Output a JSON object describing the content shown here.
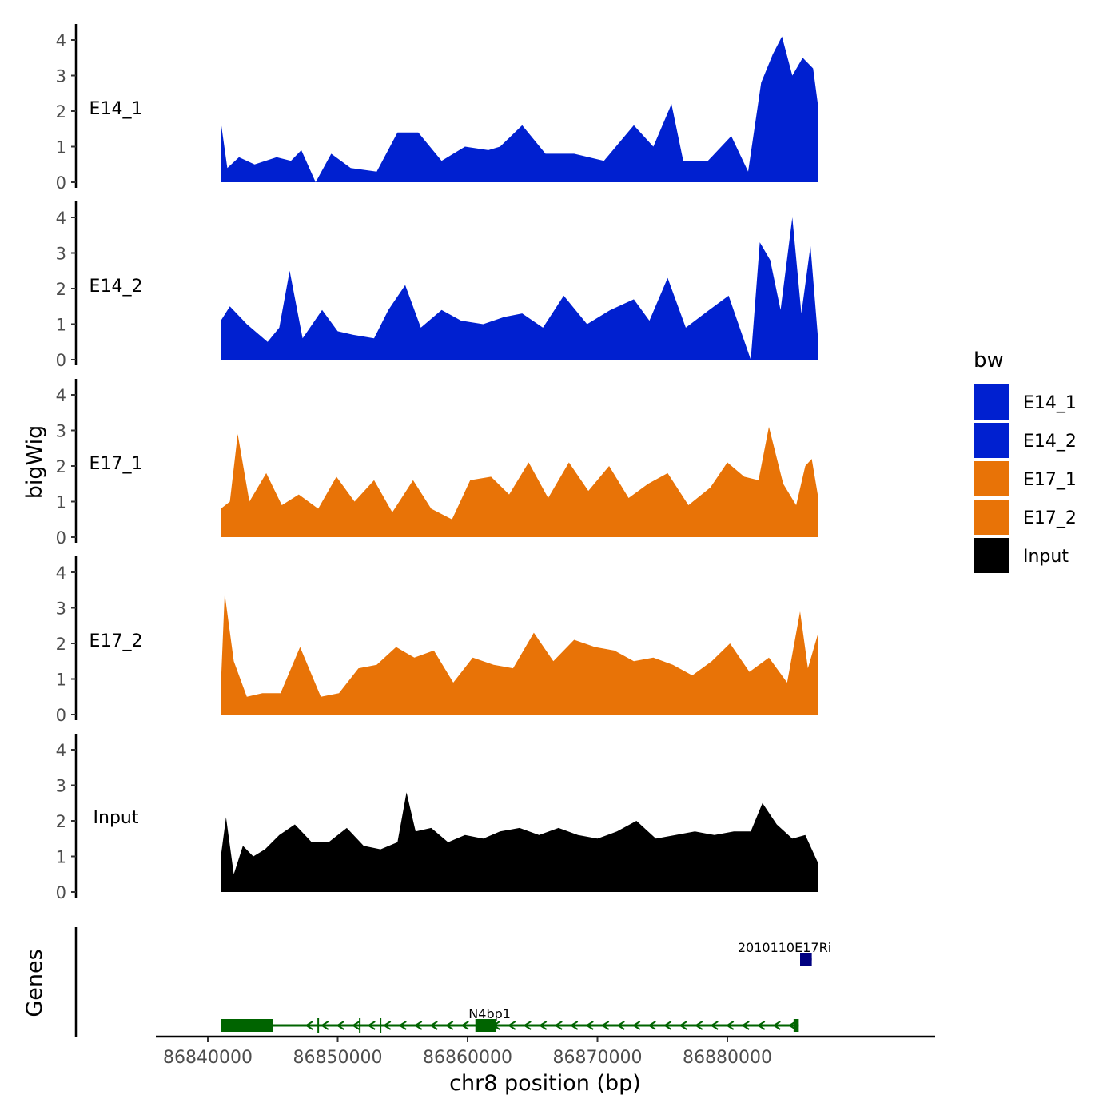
{
  "chart_data": {
    "type": "area",
    "ylabel": "bigWig",
    "xlabel": "chr8 position (bp)",
    "xlim": [
      86836000,
      86896000
    ],
    "data_range": [
      86841000,
      86887000
    ],
    "x_ticks": [
      86840000,
      86850000,
      86860000,
      86870000,
      86880000
    ],
    "x_tick_labels": [
      "86840000",
      "86850000",
      "86860000",
      "86870000",
      "86880000"
    ],
    "ylim": [
      0,
      4.3
    ],
    "y_ticks": [
      0,
      1,
      2,
      3,
      4
    ],
    "y_tick_labels": [
      "0",
      "1",
      "2",
      "3",
      "4"
    ],
    "tracks": [
      {
        "name": "E14_1",
        "color": "#0020D0",
        "x": [
          86841000,
          86841500,
          86842400,
          86843600,
          86845300,
          86846400,
          86847200,
          86848300,
          86849500,
          86851000,
          86853000,
          86854600,
          86856200,
          86858000,
          86859800,
          86861600,
          86862500,
          86864200,
          86866000,
          86868200,
          86870500,
          86872800,
          86874300,
          86875700,
          86876600,
          86878500,
          86880300,
          86881600,
          86882600,
          86883500,
          86884200,
          86885000,
          86885800,
          86886600,
          86887000
        ],
        "values": [
          1.7,
          0.4,
          0.7,
          0.5,
          0.7,
          0.6,
          0.9,
          0.0,
          0.8,
          0.4,
          0.3,
          1.4,
          1.4,
          0.6,
          1.0,
          0.9,
          1.0,
          1.6,
          0.8,
          0.8,
          0.6,
          1.6,
          1.0,
          2.2,
          0.6,
          0.6,
          1.3,
          0.3,
          2.8,
          3.6,
          4.1,
          3.0,
          3.5,
          3.2,
          2.1
        ]
      },
      {
        "name": "E14_2",
        "color": "#0020D0",
        "x": [
          86841000,
          86841700,
          86843000,
          86844600,
          86845500,
          86846300,
          86847300,
          86848800,
          86850000,
          86851200,
          86852800,
          86853900,
          86855200,
          86856400,
          86858000,
          86859500,
          86861200,
          86862800,
          86864200,
          86865800,
          86867400,
          86869200,
          86871000,
          86872800,
          86874000,
          86875400,
          86876800,
          86878600,
          86880100,
          86881800,
          86882500,
          86883300,
          86884100,
          86885000,
          86885700,
          86886400,
          86887000
        ],
        "values": [
          1.1,
          1.5,
          1.0,
          0.5,
          0.9,
          2.5,
          0.6,
          1.4,
          0.8,
          0.7,
          0.6,
          1.4,
          2.1,
          0.9,
          1.4,
          1.1,
          1.0,
          1.2,
          1.3,
          0.9,
          1.8,
          1.0,
          1.4,
          1.7,
          1.1,
          2.3,
          0.9,
          1.4,
          1.8,
          0.0,
          3.3,
          2.8,
          1.4,
          4.0,
          1.3,
          3.2,
          0.5
        ]
      },
      {
        "name": "E17_1",
        "color": "#E87307",
        "x": [
          86841000,
          86841700,
          86842300,
          86843200,
          86844500,
          86845700,
          86847000,
          86848500,
          86849900,
          86851300,
          86852800,
          86854200,
          86855800,
          86857200,
          86858800,
          86860200,
          86861800,
          86863200,
          86864700,
          86866200,
          86867800,
          86869300,
          86870900,
          86872400,
          86873900,
          86875400,
          86877000,
          86878700,
          86880000,
          86881300,
          86882400,
          86883200,
          86884300,
          86885300,
          86886000,
          86886500,
          86887000
        ],
        "values": [
          0.8,
          1.0,
          2.9,
          1.0,
          1.8,
          0.9,
          1.2,
          0.8,
          1.7,
          1.0,
          1.6,
          0.7,
          1.6,
          0.8,
          0.5,
          1.6,
          1.7,
          1.2,
          2.1,
          1.1,
          2.1,
          1.3,
          2.0,
          1.1,
          1.5,
          1.8,
          0.9,
          1.4,
          2.1,
          1.7,
          1.6,
          3.1,
          1.5,
          0.9,
          2.0,
          2.2,
          1.1
        ]
      },
      {
        "name": "E17_2",
        "color": "#E87307",
        "x": [
          86841000,
          86841300,
          86842000,
          86843000,
          86844200,
          86845600,
          86847100,
          86848700,
          86850100,
          86851600,
          86853000,
          86854500,
          86855900,
          86857400,
          86858900,
          86860400,
          86862000,
          86863500,
          86865100,
          86866600,
          86868200,
          86869800,
          86871300,
          86872800,
          86874300,
          86875800,
          86877300,
          86878800,
          86880200,
          86881700,
          86883200,
          86884600,
          86885600,
          86886200,
          86887000
        ],
        "values": [
          0.8,
          3.4,
          1.5,
          0.5,
          0.6,
          0.6,
          1.9,
          0.5,
          0.6,
          1.3,
          1.4,
          1.9,
          1.6,
          1.8,
          0.9,
          1.6,
          1.4,
          1.3,
          2.3,
          1.5,
          2.1,
          1.9,
          1.8,
          1.5,
          1.6,
          1.4,
          1.1,
          1.5,
          2.0,
          1.2,
          1.6,
          0.9,
          2.9,
          1.3,
          2.3
        ]
      },
      {
        "name": "Input",
        "color": "#000000",
        "x": [
          86841000,
          86841400,
          86842000,
          86842700,
          86843500,
          86844400,
          86845500,
          86846700,
          86848000,
          86849300,
          86850700,
          86852000,
          86853300,
          86854600,
          86855300,
          86856000,
          86857200,
          86858500,
          86859800,
          86861200,
          86862500,
          86864000,
          86865500,
          86867000,
          86868500,
          86870000,
          86871500,
          86873000,
          86874500,
          86876000,
          86877500,
          86879000,
          86880500,
          86881800,
          86882700,
          86883800,
          86885000,
          86886000,
          86887000
        ],
        "values": [
          1.0,
          2.1,
          0.5,
          1.3,
          1.0,
          1.2,
          1.6,
          1.9,
          1.4,
          1.4,
          1.8,
          1.3,
          1.2,
          1.4,
          2.8,
          1.7,
          1.8,
          1.4,
          1.6,
          1.5,
          1.7,
          1.8,
          1.6,
          1.8,
          1.6,
          1.5,
          1.7,
          2.0,
          1.5,
          1.6,
          1.7,
          1.6,
          1.7,
          1.7,
          2.5,
          1.9,
          1.5,
          1.6,
          0.8
        ]
      }
    ],
    "genes": [
      {
        "name": "N4bp1",
        "start": 86841000,
        "end": 86885500,
        "strand": "-",
        "color": "#006400",
        "exons": [
          [
            86841000,
            86845000
          ],
          [
            86860600,
            86862200
          ],
          [
            86885100,
            86885500
          ]
        ],
        "ticks": [
          86848500,
          86851700,
          86853300
        ]
      },
      {
        "name": "2010110E17Rik",
        "label": "2010110E17Ri",
        "start": 86885600,
        "end": 86886500,
        "strand": "+",
        "color": "#000080",
        "exons": [
          [
            86885600,
            86886500
          ]
        ]
      }
    ],
    "genes_panel_label": "Genes",
    "legend": {
      "title": "bw",
      "position": "right",
      "entries": [
        {
          "label": "E14_1",
          "color": "#0020D0"
        },
        {
          "label": "E14_2",
          "color": "#0020D0"
        },
        {
          "label": "E17_1",
          "color": "#E87307"
        },
        {
          "label": "E17_2",
          "color": "#E87307"
        },
        {
          "label": "Input",
          "color": "#000000"
        }
      ]
    }
  }
}
